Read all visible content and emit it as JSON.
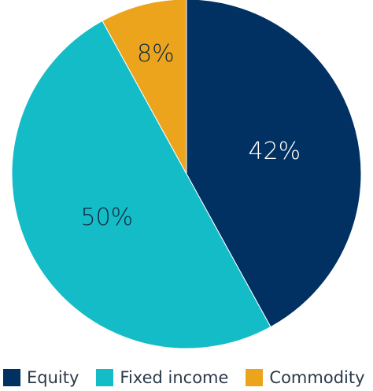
{
  "chart_data": {
    "type": "pie",
    "start_angle_deg": 0,
    "direction": "clockwise",
    "slices": [
      {
        "name": "Equity",
        "value": 42,
        "label": "42%",
        "color": "#003162",
        "label_color": "#ffffff"
      },
      {
        "name": "Fixed income",
        "value": 50,
        "label": "50%",
        "color": "#14bcc7",
        "label_color": "#0d2b40"
      },
      {
        "name": "Commodity",
        "value": 8,
        "label": "8%",
        "color": "#eca41d",
        "label_color": "#0d2b40"
      }
    ],
    "legend": {
      "position": "bottom",
      "items": [
        {
          "label": "Equity",
          "color": "#003162"
        },
        {
          "label": "Fixed income",
          "color": "#14bcc7"
        },
        {
          "label": "Commodity",
          "color": "#eca41d"
        }
      ]
    }
  }
}
